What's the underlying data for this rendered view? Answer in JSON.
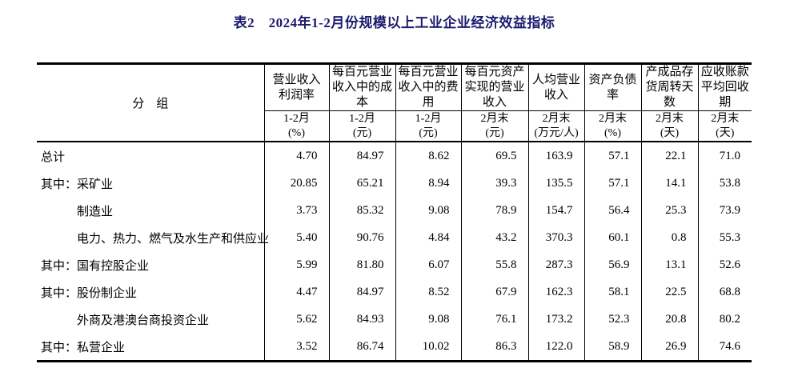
{
  "title": "表2　2024年1-2月份规模以上工业企业经济效益指标",
  "table": {
    "group_header": "分　组",
    "columns": [
      {
        "label": "营业收入\n利润率",
        "period": "1-2月",
        "unit": "(%)"
      },
      {
        "label": "每百元营业\n收入中的成\n本",
        "period": "1-2月",
        "unit": "(元)"
      },
      {
        "label": "每百元营业\n收入中的费\n用",
        "period": "1-2月",
        "unit": "(元)"
      },
      {
        "label": "每百元资产\n实现的营业\n收入",
        "period": "2月末",
        "unit": "(元)"
      },
      {
        "label": "人均营业\n收入",
        "period": "2月末",
        "unit": "(万元/人)"
      },
      {
        "label": "资产负债\n率",
        "period": "2月末",
        "unit": "(%)"
      },
      {
        "label": "产成品存\n货周转天\n数",
        "period": "2月末",
        "unit": "(天)"
      },
      {
        "label": "应收账款\n平均回收期",
        "period": "2月末",
        "unit": "(天)"
      }
    ],
    "rows": [
      {
        "label": "总计",
        "indent": false,
        "values": [
          "4.70",
          "84.97",
          "8.62",
          "69.5",
          "163.9",
          "57.1",
          "22.1",
          "71.0"
        ]
      },
      {
        "label": "其中：采矿业",
        "indent": false,
        "values": [
          "20.85",
          "65.21",
          "8.94",
          "39.3",
          "135.5",
          "57.1",
          "14.1",
          "53.8"
        ]
      },
      {
        "label": "制造业",
        "indent": true,
        "values": [
          "3.73",
          "85.32",
          "9.08",
          "78.9",
          "154.7",
          "56.4",
          "25.3",
          "73.9"
        ]
      },
      {
        "label": "电力、热力、燃气及水生产和供应业",
        "indent": true,
        "values": [
          "5.40",
          "90.76",
          "4.84",
          "43.2",
          "370.3",
          "60.1",
          "0.8",
          "55.3"
        ]
      },
      {
        "label": "其中：国有控股企业",
        "indent": false,
        "values": [
          "5.99",
          "81.80",
          "6.07",
          "55.8",
          "287.3",
          "56.9",
          "13.1",
          "52.6"
        ]
      },
      {
        "label": "其中：股份制企业",
        "indent": false,
        "values": [
          "4.47",
          "84.97",
          "8.52",
          "67.9",
          "162.3",
          "58.1",
          "22.5",
          "68.8"
        ]
      },
      {
        "label": "外商及港澳台商投资企业",
        "indent": true,
        "values": [
          "5.62",
          "84.93",
          "9.08",
          "76.1",
          "173.2",
          "52.3",
          "20.8",
          "80.2"
        ]
      },
      {
        "label": "其中：私营企业",
        "indent": false,
        "values": [
          "3.52",
          "86.74",
          "10.02",
          "86.3",
          "122.0",
          "58.9",
          "26.9",
          "74.6"
        ]
      }
    ]
  },
  "colors": {
    "title": "#1b1b6f",
    "border": "#000000",
    "text": "#000000",
    "background": "#ffffff"
  }
}
